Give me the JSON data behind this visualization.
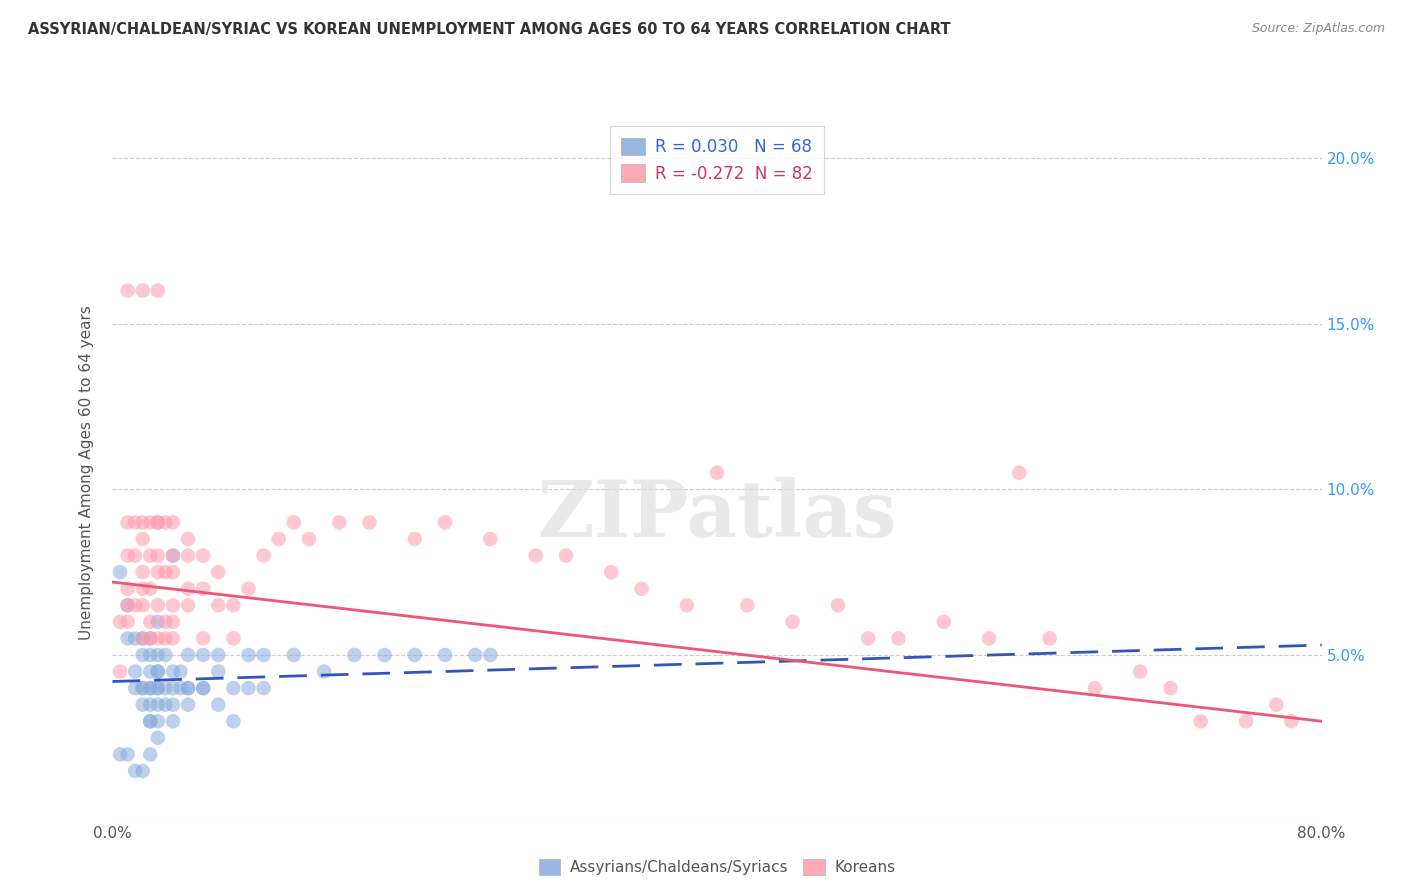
{
  "title": "ASSYRIAN/CHALDEAN/SYRIAC VS KOREAN UNEMPLOYMENT AMONG AGES 60 TO 64 YEARS CORRELATION CHART",
  "source": "Source: ZipAtlas.com",
  "ylabel": "Unemployment Among Ages 60 to 64 years",
  "xlim": [
    0.0,
    0.8
  ],
  "ylim": [
    0.0,
    0.21
  ],
  "x_ticks": [
    0.0,
    0.2,
    0.4,
    0.6,
    0.8
  ],
  "x_tick_labels": [
    "0.0%",
    "",
    "",
    "",
    "80.0%"
  ],
  "y_ticks": [
    0.0,
    0.05,
    0.1,
    0.15,
    0.2
  ],
  "y_tick_labels_right": [
    "",
    "5.0%",
    "10.0%",
    "15.0%",
    "20.0%"
  ],
  "background_color": "#ffffff",
  "series1_label": "Assyrians/Chaldeans/Syriacs",
  "series2_label": "Koreans",
  "series1_color": "#88aadd",
  "series2_color": "#ff99aa",
  "series1_line_color": "#3355bb",
  "series2_line_color": "#ee5577",
  "series1_R": 0.03,
  "series1_N": 68,
  "series2_R": -0.272,
  "series2_N": 82,
  "grid_color": "#cccccc",
  "title_color": "#333333",
  "axis_label_color": "#555555",
  "legend_r1_color": "#3366dd",
  "legend_r2_color": "#cc3366",
  "legend_n1_color": "#3366dd",
  "legend_n2_color": "#cc3366",
  "watermark_color": "#e0e0e0",
  "series1_x": [
    0.005,
    0.01,
    0.01,
    0.015,
    0.015,
    0.015,
    0.02,
    0.02,
    0.02,
    0.02,
    0.02,
    0.025,
    0.025,
    0.025,
    0.025,
    0.025,
    0.025,
    0.025,
    0.025,
    0.03,
    0.03,
    0.03,
    0.03,
    0.03,
    0.03,
    0.03,
    0.03,
    0.03,
    0.035,
    0.035,
    0.035,
    0.04,
    0.04,
    0.04,
    0.04,
    0.04,
    0.045,
    0.045,
    0.05,
    0.05,
    0.05,
    0.05,
    0.06,
    0.06,
    0.06,
    0.07,
    0.07,
    0.07,
    0.08,
    0.08,
    0.09,
    0.09,
    0.1,
    0.1,
    0.12,
    0.14,
    0.16,
    0.18,
    0.2,
    0.22,
    0.24,
    0.25,
    0.005,
    0.01,
    0.015,
    0.02,
    0.025
  ],
  "series1_y": [
    0.075,
    0.055,
    0.065,
    0.04,
    0.045,
    0.055,
    0.035,
    0.04,
    0.04,
    0.05,
    0.055,
    0.03,
    0.03,
    0.035,
    0.04,
    0.04,
    0.045,
    0.05,
    0.055,
    0.025,
    0.03,
    0.035,
    0.04,
    0.04,
    0.045,
    0.045,
    0.05,
    0.06,
    0.035,
    0.04,
    0.05,
    0.03,
    0.035,
    0.04,
    0.045,
    0.08,
    0.04,
    0.045,
    0.035,
    0.04,
    0.04,
    0.05,
    0.04,
    0.04,
    0.05,
    0.035,
    0.045,
    0.05,
    0.03,
    0.04,
    0.04,
    0.05,
    0.04,
    0.05,
    0.05,
    0.045,
    0.05,
    0.05,
    0.05,
    0.05,
    0.05,
    0.05,
    0.02,
    0.02,
    0.015,
    0.015,
    0.02
  ],
  "series2_x": [
    0.005,
    0.005,
    0.01,
    0.01,
    0.01,
    0.01,
    0.01,
    0.015,
    0.015,
    0.015,
    0.02,
    0.02,
    0.02,
    0.02,
    0.02,
    0.02,
    0.025,
    0.025,
    0.025,
    0.025,
    0.03,
    0.03,
    0.03,
    0.03,
    0.03,
    0.03,
    0.035,
    0.035,
    0.035,
    0.04,
    0.04,
    0.04,
    0.04,
    0.04,
    0.05,
    0.05,
    0.05,
    0.05,
    0.06,
    0.06,
    0.06,
    0.07,
    0.07,
    0.08,
    0.08,
    0.09,
    0.1,
    0.11,
    0.12,
    0.13,
    0.15,
    0.17,
    0.2,
    0.22,
    0.25,
    0.28,
    0.3,
    0.33,
    0.35,
    0.38,
    0.4,
    0.42,
    0.45,
    0.48,
    0.5,
    0.52,
    0.55,
    0.58,
    0.6,
    0.62,
    0.65,
    0.68,
    0.7,
    0.72,
    0.75,
    0.77,
    0.78,
    0.01,
    0.02,
    0.025,
    0.03,
    0.035,
    0.04
  ],
  "series2_y": [
    0.045,
    0.06,
    0.06,
    0.065,
    0.07,
    0.08,
    0.09,
    0.065,
    0.08,
    0.09,
    0.055,
    0.065,
    0.07,
    0.075,
    0.085,
    0.09,
    0.06,
    0.07,
    0.08,
    0.09,
    0.055,
    0.065,
    0.075,
    0.08,
    0.09,
    0.09,
    0.06,
    0.075,
    0.09,
    0.06,
    0.065,
    0.075,
    0.08,
    0.09,
    0.065,
    0.07,
    0.08,
    0.085,
    0.055,
    0.07,
    0.08,
    0.065,
    0.075,
    0.055,
    0.065,
    0.07,
    0.08,
    0.085,
    0.09,
    0.085,
    0.09,
    0.09,
    0.085,
    0.09,
    0.085,
    0.08,
    0.08,
    0.075,
    0.07,
    0.065,
    0.105,
    0.065,
    0.06,
    0.065,
    0.055,
    0.055,
    0.06,
    0.055,
    0.105,
    0.055,
    0.04,
    0.045,
    0.04,
    0.03,
    0.03,
    0.035,
    0.03,
    0.16,
    0.16,
    0.055,
    0.16,
    0.055,
    0.055
  ],
  "trend1_x0": 0.0,
  "trend1_x1": 0.8,
  "trend1_y0": 0.042,
  "trend1_y1": 0.053,
  "trend2_x0": 0.0,
  "trend2_x1": 0.8,
  "trend2_y0": 0.072,
  "trend2_y1": 0.03
}
